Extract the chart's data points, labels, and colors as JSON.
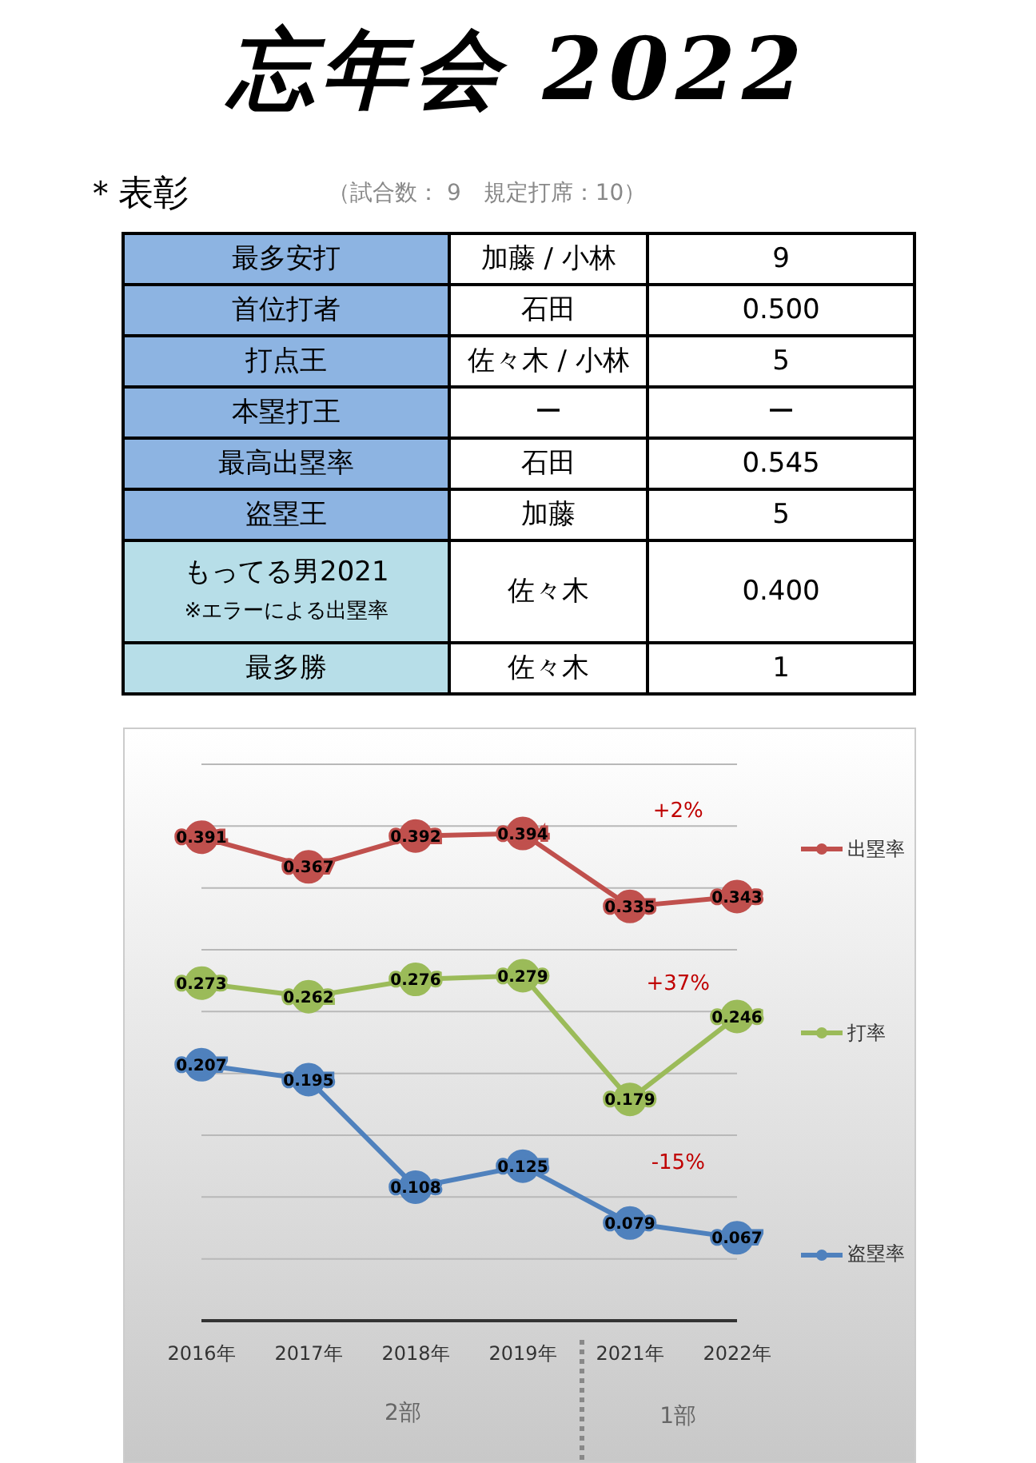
{
  "chart_data": [
    {
      "type": "other",
      "title": "忘年会 2022",
      "subtitle": "＊表彰",
      "annotations": [
        "（試合数： 9　規定打席：10）"
      ],
      "cell_labels": [
        [
          "最多安打",
          "加藤 / 小林",
          "9"
        ],
        [
          "首位打者",
          "石田",
          "0.500"
        ],
        [
          "打点王",
          "佐々木 / 小林",
          "5"
        ],
        [
          "本塁打王",
          "ー",
          "ー"
        ],
        [
          "最高出塁率",
          "石田",
          "0.545"
        ],
        [
          "盗塁王",
          "加藤",
          "5"
        ],
        [
          "もってる男2021\n※エラーによる出塁率",
          "佐々木",
          "0.400"
        ],
        [
          "最多勝",
          "佐々木",
          "1"
        ]
      ],
      "colors": [
        "#8db4e2",
        "#8db4e2",
        "#8db4e2",
        "#8db4e2",
        "#8db4e2",
        "#8db4e2",
        "#b7dee8",
        "#b7dee8"
      ]
    },
    {
      "type": "line",
      "categories": [
        "2016年",
        "2017年",
        "2018年",
        "2019年",
        "2021年",
        "2022年"
      ],
      "series": [
        {
          "name": "出塁率",
          "color": "#c0504d",
          "values": [
            0.391,
            0.367,
            0.392,
            0.394,
            0.335,
            0.343
          ]
        },
        {
          "name": "打率",
          "color": "#9bbb59",
          "values": [
            0.273,
            0.262,
            0.276,
            0.279,
            0.179,
            0.246
          ]
        },
        {
          "name": "盗塁率",
          "color": "#4f81bd",
          "values": [
            0.207,
            0.195,
            0.108,
            0.125,
            0.079,
            0.067
          ]
        }
      ],
      "ylim": [
        0,
        0.45
      ],
      "yticks": [
        {
          "value": 0,
          "label": null
        },
        {
          "value": 0.05,
          "label": null
        },
        {
          "value": 0.1,
          "label": null
        },
        {
          "value": 0.15,
          "label": null
        },
        {
          "value": 0.2,
          "label": null
        },
        {
          "value": 0.25,
          "label": null
        },
        {
          "value": 0.3,
          "label": null
        },
        {
          "value": 0.35,
          "label": null
        },
        {
          "value": 0.4,
          "label": null
        },
        {
          "value": 0.45,
          "label": null
        }
      ],
      "tick_labels": "x",
      "grid": "y",
      "legend": "right",
      "marker": "circle",
      "line_style": "solid",
      "data_labels": true,
      "annotations": [
        "+2%",
        "+37%",
        "-15%",
        "2部",
        "1部"
      ]
    }
  ]
}
